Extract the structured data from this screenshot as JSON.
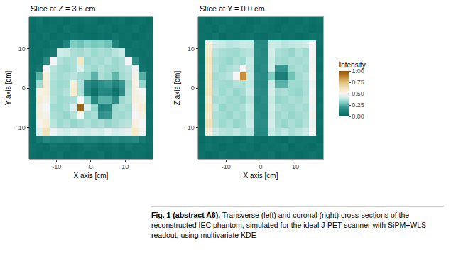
{
  "chart_data": [
    {
      "type": "heatmap",
      "title": "Slice at Z = 3.6 cm",
      "x_label": "X axis [cm]",
      "y_label": "Y axis [cm]",
      "xlim": [
        -18,
        18
      ],
      "ylim": [
        -18,
        18
      ],
      "xticks": [
        -10,
        0,
        10
      ],
      "yticks": [
        -10,
        0,
        10
      ],
      "grid": false,
      "x": [
        -17,
        -15,
        -13,
        -11,
        -9,
        -7,
        -5,
        -3,
        -1,
        1,
        3,
        5,
        7,
        9,
        11,
        13,
        15,
        17
      ],
      "y": [
        -17,
        -15,
        -13,
        -11,
        -9,
        -7,
        -5,
        -3,
        -1,
        1,
        3,
        5,
        7,
        9,
        11,
        13,
        15,
        17
      ],
      "z": [
        [
          0.04,
          0.03,
          0.05,
          0.04,
          0.06,
          0.03,
          0.04,
          0.05,
          0.03,
          0.04,
          0.06,
          0.03,
          0.05,
          0.04,
          0.03,
          0.05,
          0.04,
          0.03
        ],
        [
          0.05,
          0.04,
          0.03,
          0.06,
          0.04,
          0.05,
          0.03,
          0.04,
          0.06,
          0.05,
          0.03,
          0.04,
          0.05,
          0.03,
          0.06,
          0.04,
          0.05,
          0.04
        ],
        [
          0.04,
          0.08,
          0.14,
          0.12,
          0.13,
          0.11,
          0.12,
          0.14,
          0.12,
          0.13,
          0.11,
          0.12,
          0.14,
          0.12,
          0.13,
          0.15,
          0.08,
          0.05
        ],
        [
          0.05,
          0.45,
          0.62,
          0.48,
          0.44,
          0.42,
          0.45,
          0.43,
          0.41,
          0.44,
          0.42,
          0.46,
          0.43,
          0.45,
          0.47,
          0.6,
          0.48,
          0.04
        ],
        [
          0.04,
          0.52,
          0.56,
          0.38,
          0.34,
          0.36,
          0.33,
          0.35,
          0.37,
          0.34,
          0.36,
          0.33,
          0.35,
          0.37,
          0.38,
          0.54,
          0.5,
          0.05
        ],
        [
          0.05,
          0.55,
          0.52,
          0.36,
          0.35,
          0.33,
          0.37,
          0.5,
          0.34,
          0.36,
          0.18,
          0.2,
          0.35,
          0.34,
          0.36,
          0.5,
          0.53,
          0.04
        ],
        [
          0.04,
          0.54,
          0.5,
          0.35,
          0.34,
          0.36,
          0.45,
          0.95,
          0.45,
          0.33,
          0.12,
          0.14,
          0.34,
          0.36,
          0.35,
          0.52,
          0.56,
          0.05
        ],
        [
          0.05,
          0.56,
          0.53,
          0.37,
          0.34,
          0.35,
          0.36,
          0.5,
          0.33,
          0.15,
          0.25,
          0.25,
          0.16,
          0.34,
          0.37,
          0.55,
          0.52,
          0.04
        ],
        [
          0.04,
          0.53,
          0.55,
          0.36,
          0.35,
          0.37,
          0.58,
          0.36,
          0.14,
          0.05,
          0.14,
          0.13,
          0.05,
          0.16,
          0.36,
          0.54,
          0.5,
          0.05
        ],
        [
          0.05,
          0.35,
          0.56,
          0.36,
          0.34,
          0.35,
          0.55,
          0.37,
          0.16,
          0.1,
          0.17,
          0.2,
          0.12,
          0.2,
          0.35,
          0.54,
          0.33,
          0.04
        ],
        [
          0.04,
          0.25,
          0.55,
          0.37,
          0.35,
          0.36,
          0.38,
          0.35,
          0.34,
          0.25,
          0.36,
          0.34,
          0.26,
          0.35,
          0.37,
          0.53,
          0.24,
          0.05
        ],
        [
          0.05,
          0.07,
          0.5,
          0.38,
          0.35,
          0.34,
          0.36,
          0.45,
          0.36,
          0.34,
          0.37,
          0.35,
          0.34,
          0.36,
          0.38,
          0.48,
          0.06,
          0.04
        ],
        [
          0.04,
          0.05,
          0.15,
          0.5,
          0.37,
          0.35,
          0.36,
          0.6,
          0.34,
          0.36,
          0.35,
          0.37,
          0.34,
          0.36,
          0.5,
          0.16,
          0.05,
          0.04
        ],
        [
          0.05,
          0.04,
          0.06,
          0.08,
          0.42,
          0.4,
          0.36,
          0.35,
          0.37,
          0.34,
          0.36,
          0.35,
          0.38,
          0.4,
          0.07,
          0.05,
          0.04,
          0.05
        ],
        [
          0.04,
          0.05,
          0.04,
          0.06,
          0.05,
          0.12,
          0.3,
          0.28,
          0.31,
          0.29,
          0.3,
          0.28,
          0.12,
          0.05,
          0.04,
          0.06,
          0.05,
          0.04
        ],
        [
          0.05,
          0.04,
          0.06,
          0.03,
          0.05,
          0.04,
          0.06,
          0.05,
          0.04,
          0.03,
          0.05,
          0.04,
          0.06,
          0.04,
          0.05,
          0.03,
          0.04,
          0.05
        ],
        [
          0.03,
          0.05,
          0.04,
          0.05,
          0.03,
          0.06,
          0.04,
          0.03,
          0.05,
          0.04,
          0.06,
          0.05,
          0.03,
          0.05,
          0.04,
          0.06,
          0.03,
          0.04
        ],
        [
          0.04,
          0.06,
          0.03,
          0.04,
          0.05,
          0.03,
          0.05,
          0.04,
          0.06,
          0.05,
          0.03,
          0.04,
          0.05,
          0.06,
          0.03,
          0.04,
          0.05,
          0.03
        ]
      ]
    },
    {
      "type": "heatmap",
      "title": "Slice at Y = 0.0 cm",
      "x_label": "X axis [cm]",
      "y_label": "Z axis [cm]",
      "xlim": [
        -18,
        18
      ],
      "ylim": [
        -18,
        18
      ],
      "xticks": [
        -10,
        0,
        10
      ],
      "yticks": [
        -10,
        0,
        10
      ],
      "grid": false,
      "x": [
        -17,
        -15,
        -13,
        -11,
        -9,
        -7,
        -5,
        -3,
        -1,
        1,
        3,
        5,
        7,
        9,
        11,
        13,
        15,
        17
      ],
      "y": [
        -17,
        -15,
        -13,
        -11,
        -9,
        -7,
        -5,
        -3,
        -1,
        1,
        3,
        5,
        7,
        9,
        11,
        13,
        15,
        17
      ],
      "z": [
        [
          0.05,
          0.03,
          0.04,
          0.06,
          0.04,
          0.05,
          0.03,
          0.04,
          0.05,
          0.04,
          0.06,
          0.03,
          0.04,
          0.05,
          0.03,
          0.04,
          0.06,
          0.04
        ],
        [
          0.04,
          0.06,
          0.05,
          0.03,
          0.05,
          0.04,
          0.06,
          0.05,
          0.03,
          0.05,
          0.04,
          0.05,
          0.06,
          0.03,
          0.05,
          0.04,
          0.03,
          0.05
        ],
        [
          0.03,
          0.05,
          0.04,
          0.05,
          0.06,
          0.03,
          0.04,
          0.06,
          0.04,
          0.03,
          0.05,
          0.04,
          0.03,
          0.06,
          0.04,
          0.05,
          0.05,
          0.03
        ],
        [
          0.05,
          0.55,
          0.4,
          0.38,
          0.37,
          0.39,
          0.36,
          0.38,
          0.14,
          0.15,
          0.4,
          0.37,
          0.39,
          0.36,
          0.38,
          0.4,
          0.5,
          0.04
        ],
        [
          0.04,
          0.62,
          0.37,
          0.34,
          0.36,
          0.33,
          0.35,
          0.41,
          0.15,
          0.16,
          0.43,
          0.35,
          0.33,
          0.36,
          0.34,
          0.37,
          0.48,
          0.05
        ],
        [
          0.05,
          0.58,
          0.36,
          0.35,
          0.33,
          0.36,
          0.34,
          0.39,
          0.16,
          0.14,
          0.41,
          0.34,
          0.36,
          0.33,
          0.35,
          0.36,
          0.52,
          0.04
        ],
        [
          0.04,
          0.6,
          0.38,
          0.33,
          0.35,
          0.34,
          0.36,
          0.4,
          0.15,
          0.15,
          0.42,
          0.36,
          0.35,
          0.34,
          0.36,
          0.35,
          0.49,
          0.05
        ],
        [
          0.05,
          0.57,
          0.35,
          0.36,
          0.34,
          0.35,
          0.33,
          0.38,
          0.14,
          0.16,
          0.4,
          0.33,
          0.34,
          0.36,
          0.35,
          0.37,
          0.51,
          0.04
        ],
        [
          0.04,
          0.61,
          0.37,
          0.34,
          0.36,
          0.33,
          0.35,
          0.41,
          0.16,
          0.15,
          0.43,
          0.35,
          0.36,
          0.34,
          0.33,
          0.36,
          0.5,
          0.05
        ],
        [
          0.05,
          0.59,
          0.36,
          0.35,
          0.34,
          0.37,
          0.36,
          0.39,
          0.15,
          0.14,
          0.41,
          0.25,
          0.25,
          0.35,
          0.34,
          0.36,
          0.48,
          0.04
        ],
        [
          0.04,
          0.6,
          0.35,
          0.36,
          0.38,
          0.5,
          0.85,
          0.4,
          0.16,
          0.15,
          0.3,
          0.1,
          0.1,
          0.28,
          0.35,
          0.37,
          0.5,
          0.05
        ],
        [
          0.05,
          0.58,
          0.37,
          0.34,
          0.36,
          0.38,
          0.5,
          0.39,
          0.14,
          0.16,
          0.42,
          0.2,
          0.2,
          0.34,
          0.36,
          0.35,
          0.51,
          0.04
        ],
        [
          0.04,
          0.6,
          0.36,
          0.35,
          0.33,
          0.36,
          0.34,
          0.4,
          0.15,
          0.15,
          0.41,
          0.35,
          0.34,
          0.36,
          0.35,
          0.36,
          0.49,
          0.05
        ],
        [
          0.05,
          0.57,
          0.38,
          0.36,
          0.35,
          0.34,
          0.37,
          0.38,
          0.16,
          0.14,
          0.43,
          0.36,
          0.35,
          0.33,
          0.37,
          0.35,
          0.5,
          0.04
        ],
        [
          0.04,
          0.55,
          0.42,
          0.4,
          0.38,
          0.39,
          0.41,
          0.4,
          0.15,
          0.15,
          0.41,
          0.4,
          0.38,
          0.39,
          0.4,
          0.42,
          0.5,
          0.05
        ],
        [
          0.05,
          0.04,
          0.06,
          0.03,
          0.05,
          0.04,
          0.05,
          0.06,
          0.04,
          0.03,
          0.05,
          0.06,
          0.04,
          0.05,
          0.03,
          0.04,
          0.06,
          0.05
        ],
        [
          0.04,
          0.05,
          0.03,
          0.06,
          0.04,
          0.05,
          0.03,
          0.04,
          0.06,
          0.05,
          0.04,
          0.03,
          0.05,
          0.04,
          0.06,
          0.05,
          0.03,
          0.04
        ],
        [
          0.05,
          0.03,
          0.05,
          0.04,
          0.06,
          0.04,
          0.05,
          0.03,
          0.04,
          0.06,
          0.05,
          0.04,
          0.03,
          0.05,
          0.04,
          0.06,
          0.04,
          0.05
        ]
      ]
    }
  ],
  "colorbar": {
    "title": "Intensity",
    "range": [
      0,
      1
    ],
    "ticks": [
      {
        "value": 0,
        "label": "0.00"
      },
      {
        "value": 0.25,
        "label": "0.25"
      },
      {
        "value": 0.5,
        "label": "0.50"
      },
      {
        "value": 0.75,
        "label": "0.75"
      },
      {
        "value": 1,
        "label": "1.00"
      }
    ]
  },
  "caption": {
    "label": "Fig. 1 (abstract A6).",
    "text": "Transverse (left) and coronal (right) cross-sections of the reconstructed IEC phantom, simulated for the ideal J-PET scanner with SiPM+WLS readout, using multivariate KDE"
  }
}
